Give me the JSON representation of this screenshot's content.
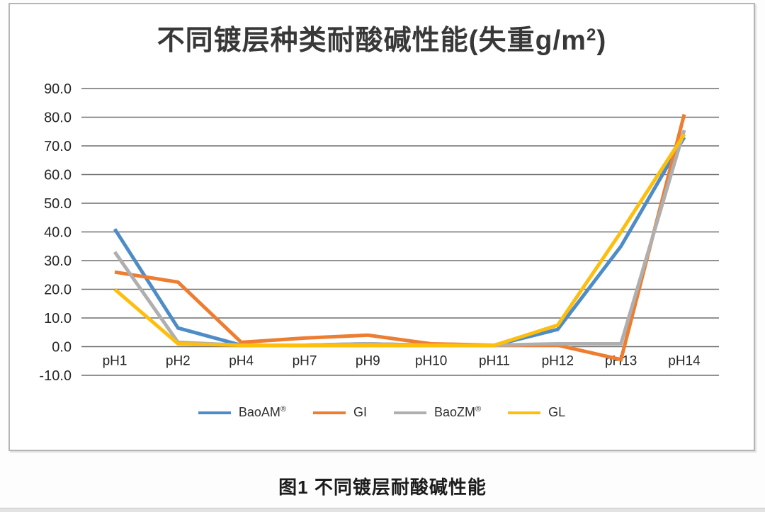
{
  "chart_panel": {
    "title_main": "不同镀层种类耐酸碱性能(失重g/m",
    "title_sup": "2",
    "title_close": ")"
  },
  "caption": "图1 不同镀层耐酸碱性能",
  "colors": {
    "gridline": "#6f6f6f",
    "axis_text": "#262626",
    "panel_border": "#b5b5b5"
  },
  "chart_data": {
    "type": "line",
    "title": "不同镀层种类耐酸碱性能(失重g/m²)",
    "xlabel": "",
    "ylabel": "",
    "categories": [
      "pH1",
      "pH2",
      "pH4",
      "pH7",
      "pH9",
      "pH10",
      "pH11",
      "pH12",
      "pH13",
      "pH14"
    ],
    "series": [
      {
        "name": "BaoAM",
        "sup": "®",
        "color": "#4E8CC8",
        "values": [
          41.0,
          6.5,
          0.5,
          0.5,
          1.0,
          0.5,
          0.5,
          6.0,
          35.0,
          73.0
        ]
      },
      {
        "name": "GI",
        "sup": "",
        "color": "#ED7D31",
        "values": [
          26.0,
          22.5,
          1.5,
          3.0,
          4.0,
          1.0,
          0.5,
          0.5,
          -4.5,
          81.0
        ]
      },
      {
        "name": "BaoZM",
        "sup": "®",
        "color": "#AFAFAF",
        "values": [
          33.0,
          1.5,
          0.5,
          0.5,
          1.0,
          0.5,
          0.5,
          1.0,
          1.0,
          75.5
        ]
      },
      {
        "name": "GL",
        "sup": "",
        "color": "#FDBE0D",
        "values": [
          20.0,
          1.0,
          0.5,
          0.5,
          0.5,
          0.5,
          0.5,
          7.5,
          40.0,
          74.0
        ]
      }
    ],
    "ylim": [
      -10.0,
      90.0
    ],
    "ytick_step": 10.0,
    "ytick_labels": [
      "90.0",
      "80.0",
      "70.0",
      "60.0",
      "50.0",
      "40.0",
      "30.0",
      "20.0",
      "10.0",
      "0.0",
      "-10.0"
    ],
    "grid": true,
    "legend_position": "bottom"
  }
}
